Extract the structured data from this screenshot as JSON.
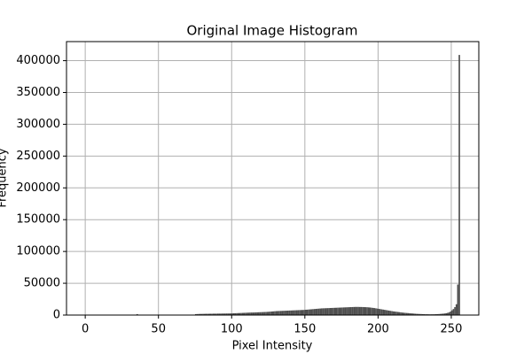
{
  "chart_data": {
    "type": "histogram",
    "title": "Original Image Histogram",
    "xlabel": "Pixel Intensity",
    "ylabel": "Frequency",
    "bins": [
      0,
      1,
      2,
      3,
      4,
      5,
      6,
      7,
      8,
      9,
      10,
      11,
      12,
      13,
      14,
      15,
      16,
      17,
      18,
      19,
      20,
      21,
      22,
      23,
      24,
      25,
      26,
      27,
      28,
      29,
      30,
      31,
      32,
      33,
      34,
      35,
      36,
      37,
      38,
      39,
      40,
      41,
      42,
      43,
      44,
      45,
      46,
      47,
      48,
      49,
      50,
      51,
      52,
      53,
      54,
      55,
      56,
      57,
      58,
      59,
      60,
      61,
      62,
      63,
      64,
      65,
      66,
      67,
      68,
      69,
      70,
      71,
      72,
      73,
      74,
      75,
      76,
      77,
      78,
      79,
      80,
      81,
      82,
      83,
      84,
      85,
      86,
      87,
      88,
      89,
      90,
      91,
      92,
      93,
      94,
      95,
      96,
      97,
      98,
      99,
      100,
      101,
      102,
      103,
      104,
      105,
      106,
      107,
      108,
      109,
      110,
      111,
      112,
      113,
      114,
      115,
      116,
      117,
      118,
      119,
      120,
      121,
      122,
      123,
      124,
      125,
      126,
      127,
      128,
      129,
      130,
      131,
      132,
      133,
      134,
      135,
      136,
      137,
      138,
      139,
      140,
      141,
      142,
      143,
      144,
      145,
      146,
      147,
      148,
      149,
      150,
      151,
      152,
      153,
      154,
      155,
      156,
      157,
      158,
      159,
      160,
      161,
      162,
      163,
      164,
      165,
      166,
      167,
      168,
      169,
      170,
      171,
      172,
      173,
      174,
      175,
      176,
      177,
      178,
      179,
      180,
      181,
      182,
      183,
      184,
      185,
      186,
      187,
      188,
      189,
      190,
      191,
      192,
      193,
      194,
      195,
      196,
      197,
      198,
      199,
      200,
      201,
      202,
      203,
      204,
      205,
      206,
      207,
      208,
      209,
      210,
      211,
      212,
      213,
      214,
      215,
      216,
      217,
      218,
      219,
      220,
      221,
      222,
      223,
      224,
      225,
      226,
      227,
      228,
      229,
      230,
      231,
      232,
      233,
      234,
      235,
      236,
      237,
      238,
      239,
      240,
      241,
      242,
      243,
      244,
      245,
      246,
      247,
      248,
      249,
      250,
      251,
      252,
      253,
      254,
      255,
      256
    ],
    "counts": [
      300,
      200,
      200,
      200,
      200,
      200,
      200,
      200,
      200,
      200,
      200,
      200,
      200,
      200,
      200,
      200,
      200,
      200,
      200,
      200,
      200,
      200,
      200,
      200,
      200,
      200,
      200,
      200,
      200,
      200,
      300,
      300,
      300,
      300,
      300,
      1500,
      400,
      400,
      400,
      400,
      400,
      400,
      400,
      400,
      400,
      400,
      400,
      400,
      400,
      400,
      500,
      500,
      500,
      500,
      500,
      500,
      500,
      500,
      500,
      500,
      500,
      500,
      500,
      500,
      500,
      500,
      500,
      500,
      500,
      500,
      600,
      600,
      600,
      600,
      600,
      1500,
      1600,
      1700,
      1800,
      1800,
      1900,
      1900,
      2000,
      2000,
      2000,
      2100,
      2100,
      2200,
      2200,
      2200,
      2300,
      2300,
      2300,
      2400,
      2400,
      2400,
      2500,
      2500,
      2500,
      2600,
      2700,
      2800,
      2900,
      3000,
      3100,
      3200,
      3300,
      3400,
      3500,
      3600,
      3700,
      3800,
      3900,
      4000,
      4000,
      4100,
      4200,
      4300,
      4400,
      4500,
      4600,
      4700,
      4800,
      4900,
      5000,
      5200,
      5400,
      5600,
      5800,
      6000,
      6200,
      6300,
      6400,
      6500,
      6600,
      6700,
      6800,
      6900,
      7000,
      7100,
      7200,
      7300,
      7400,
      7500,
      7600,
      7700,
      7800,
      7900,
      8000,
      8100,
      8300,
      8500,
      8700,
      8900,
      9100,
      9300,
      9500,
      9700,
      9900,
      10100,
      10300,
      10500,
      10600,
      10700,
      10800,
      10900,
      11000,
      11100,
      11200,
      11300,
      11400,
      11500,
      11600,
      11700,
      11800,
      11900,
      12000,
      12100,
      12200,
      12300,
      12400,
      12500,
      12600,
      12700,
      12800,
      12800,
      12800,
      12700,
      12700,
      12600,
      12500,
      12400,
      12300,
      12100,
      11900,
      11600,
      11300,
      11000,
      10600,
      10200,
      9800,
      9400,
      9000,
      8600,
      8200,
      7800,
      7400,
      7000,
      6600,
      6200,
      5800,
      5500,
      5200,
      4900,
      4600,
      4300,
      4000,
      3700,
      3500,
      3300,
      3100,
      2900,
      2700,
      2500,
      2300,
      2100,
      1900,
      1800,
      1700,
      1600,
      1500,
      1400,
      1300,
      1300,
      1200,
      1200,
      1200,
      1200,
      1300,
      1400,
      1500,
      1600,
      1800,
      2000,
      2200,
      2500,
      2900,
      3400,
      4200,
      5500,
      7500,
      9500,
      12500,
      17000,
      48000,
      409000
    ],
    "color": "#4d4d4d",
    "xlim": [
      -12.8,
      268.8
    ],
    "xticks": [
      0,
      50,
      100,
      150,
      200,
      250
    ],
    "ylim": [
      0,
      430000
    ],
    "yticks": [
      0,
      50000,
      100000,
      150000,
      200000,
      250000,
      300000,
      350000,
      400000
    ],
    "grid": true
  }
}
